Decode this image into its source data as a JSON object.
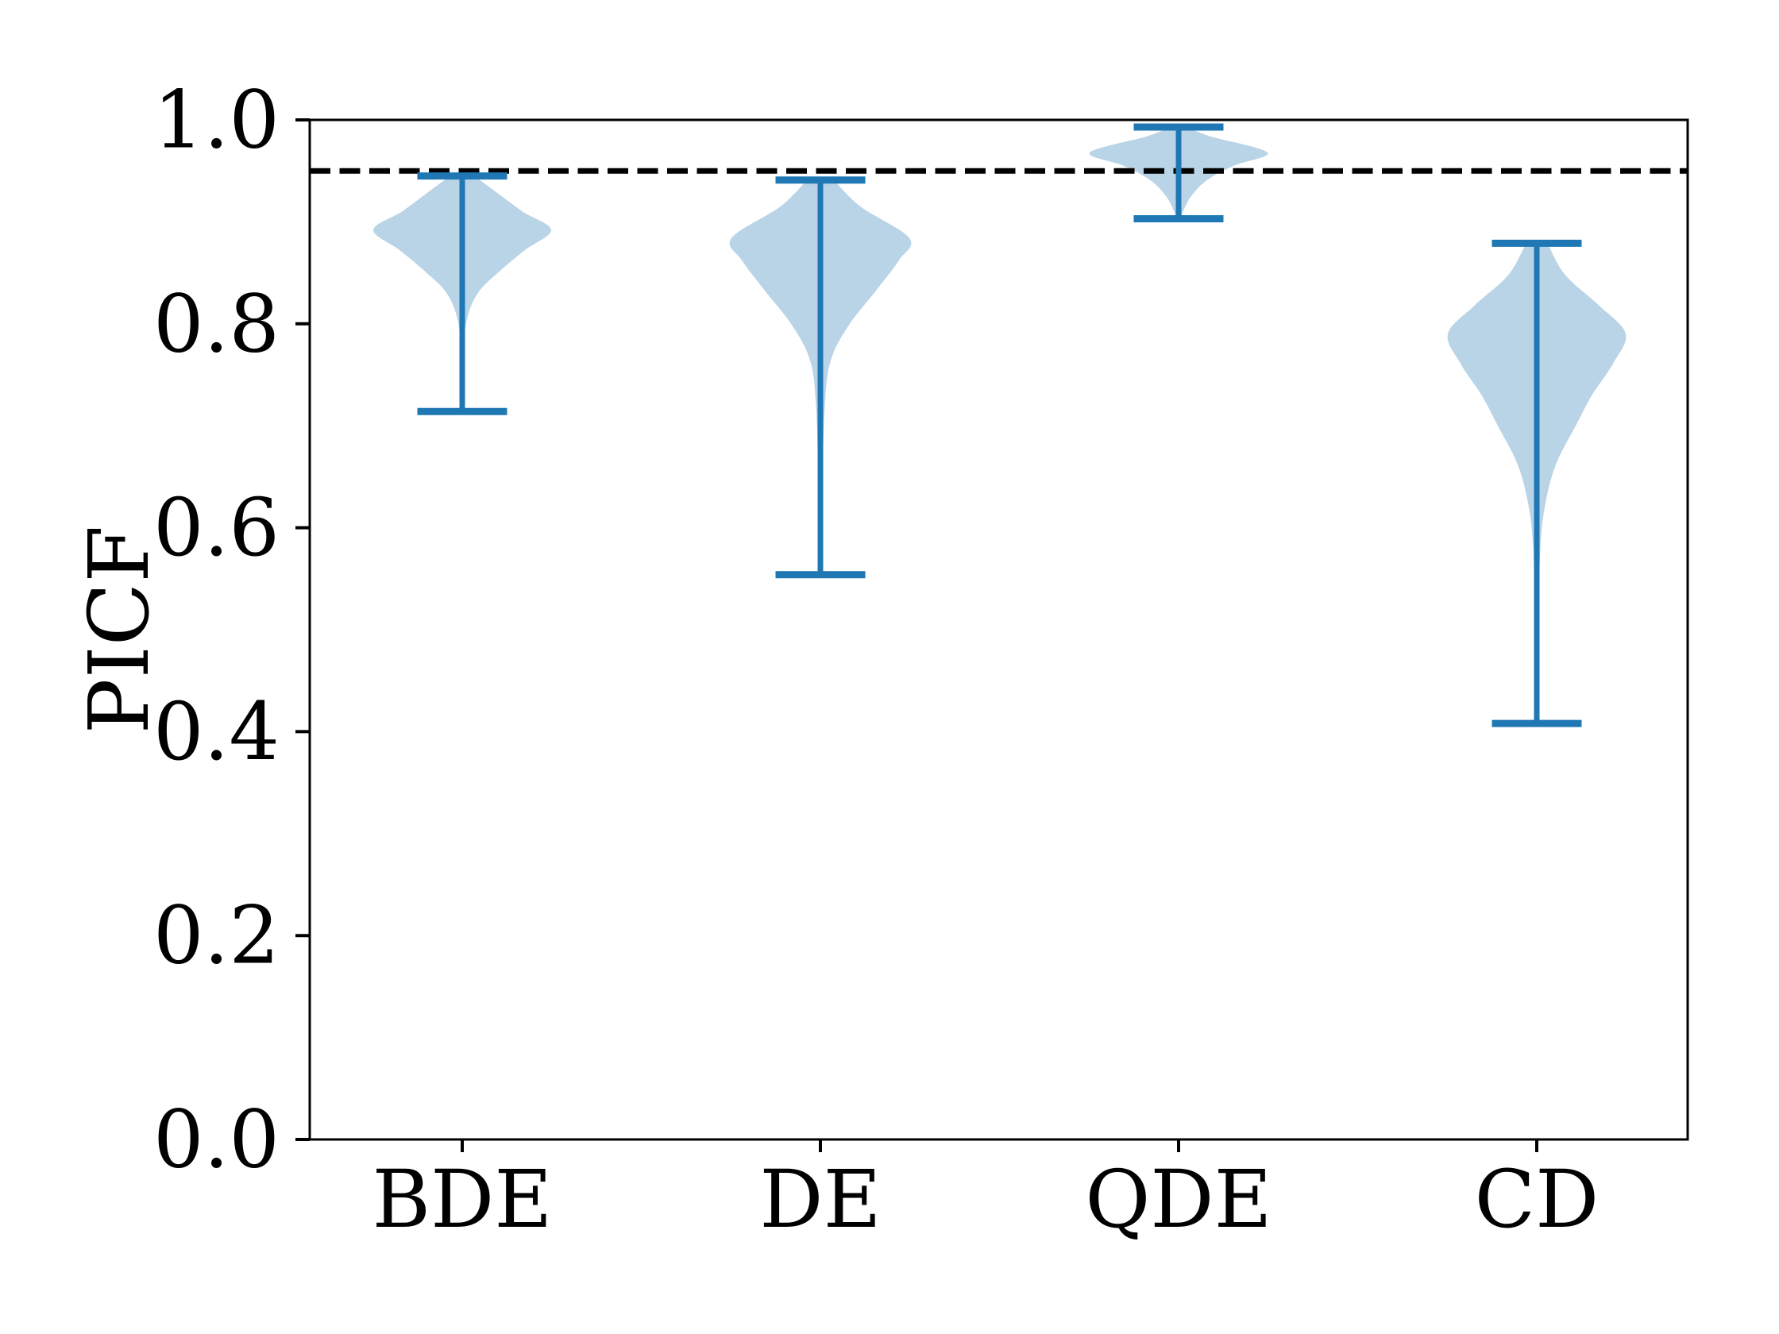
{
  "chart_data": {
    "type": "violin",
    "title": "",
    "xlabel": "",
    "ylabel": "PICF",
    "categories": [
      "BDE",
      "DE",
      "QDE",
      "CD"
    ],
    "ylim": [
      0.0,
      1.0
    ],
    "yticks": [
      {
        "value": 0.0,
        "label": "0.0"
      },
      {
        "value": 0.2,
        "label": "0.2"
      },
      {
        "value": 0.4,
        "label": "0.4"
      },
      {
        "value": 0.6,
        "label": "0.6"
      },
      {
        "value": 0.8,
        "label": "0.8"
      },
      {
        "value": 1.0,
        "label": "1.0"
      }
    ],
    "grid": false,
    "legend": "none",
    "reference_line": {
      "value": 0.95,
      "style": "dashed",
      "color": "#000000"
    },
    "series": [
      {
        "name": "BDE",
        "min": 0.714,
        "max": 0.945,
        "peak_density_at": 0.892,
        "profile": [
          [
            0.945,
            0.14
          ],
          [
            0.928,
            0.4
          ],
          [
            0.91,
            0.68
          ],
          [
            0.892,
            1.0
          ],
          [
            0.872,
            0.7
          ],
          [
            0.85,
            0.4
          ],
          [
            0.832,
            0.19
          ],
          [
            0.81,
            0.07
          ],
          [
            0.78,
            0.02
          ],
          [
            0.714,
            0.015
          ]
        ]
      },
      {
        "name": "DE",
        "min": 0.554,
        "max": 0.941,
        "peak_density_at": 0.884,
        "profile": [
          [
            0.941,
            0.15
          ],
          [
            0.915,
            0.45
          ],
          [
            0.884,
            1.0
          ],
          [
            0.862,
            0.88
          ],
          [
            0.832,
            0.62
          ],
          [
            0.8,
            0.33
          ],
          [
            0.765,
            0.12
          ],
          [
            0.72,
            0.05
          ],
          [
            0.63,
            0.02
          ],
          [
            0.554,
            0.015
          ]
        ]
      },
      {
        "name": "QDE",
        "min": 0.903,
        "max": 0.993,
        "peak_density_at": 0.968,
        "profile": [
          [
            0.993,
            0.1
          ],
          [
            0.984,
            0.35
          ],
          [
            0.968,
            1.0
          ],
          [
            0.955,
            0.62
          ],
          [
            0.941,
            0.32
          ],
          [
            0.925,
            0.14
          ],
          [
            0.91,
            0.05
          ],
          [
            0.903,
            0.03
          ]
        ]
      },
      {
        "name": "CD",
        "min": 0.408,
        "max": 0.879,
        "peak_density_at": 0.79,
        "profile": [
          [
            0.879,
            0.12
          ],
          [
            0.848,
            0.32
          ],
          [
            0.818,
            0.7
          ],
          [
            0.79,
            1.0
          ],
          [
            0.76,
            0.85
          ],
          [
            0.73,
            0.62
          ],
          [
            0.702,
            0.45
          ],
          [
            0.663,
            0.22
          ],
          [
            0.625,
            0.1
          ],
          [
            0.58,
            0.04
          ],
          [
            0.5,
            0.02
          ],
          [
            0.408,
            0.015
          ]
        ]
      }
    ],
    "colors": {
      "violin_fill": "#b9d4e7",
      "violin_line": "#1f77b4",
      "axis": "#000000",
      "background": "#ffffff"
    }
  }
}
